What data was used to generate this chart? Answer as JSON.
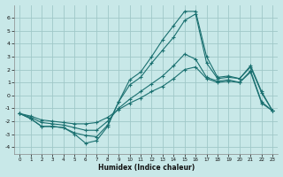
{
  "xlabel": "Humidex (Indice chaleur)",
  "bg_color": "#c8e8e8",
  "grid_color": "#a0c8c8",
  "line_color": "#1a7070",
  "xlim": [
    -0.5,
    23.5
  ],
  "ylim": [
    -4.5,
    7.0
  ],
  "yticks": [
    -4,
    -3,
    -2,
    -1,
    0,
    1,
    2,
    3,
    4,
    5,
    6
  ],
  "xticks": [
    0,
    1,
    2,
    3,
    4,
    5,
    6,
    7,
    8,
    9,
    10,
    11,
    12,
    13,
    14,
    15,
    16,
    17,
    18,
    19,
    20,
    21,
    22,
    23
  ],
  "line_peaked_x": [
    0,
    1,
    2,
    3,
    4,
    5,
    6,
    7,
    8,
    9,
    10,
    11,
    12,
    13,
    14,
    15,
    16,
    17,
    18,
    19,
    20,
    21,
    22,
    23
  ],
  "line_peaked_y": [
    -1.4,
    -1.8,
    -2.4,
    -2.4,
    -2.5,
    -3.0,
    -3.7,
    -3.5,
    -2.4,
    -0.5,
    1.2,
    1.8,
    3.0,
    4.3,
    5.4,
    6.5,
    6.5,
    3.0,
    1.4,
    1.5,
    1.3,
    2.3,
    0.3,
    -1.2
  ],
  "line2_x": [
    0,
    1,
    2,
    3,
    4,
    5,
    6,
    7,
    8,
    9,
    10,
    11,
    12,
    13,
    14,
    15,
    16,
    17,
    18,
    19,
    20,
    21,
    22,
    23
  ],
  "line2_y": [
    -1.4,
    -1.8,
    -2.4,
    -2.4,
    -2.5,
    -2.9,
    -3.1,
    -3.2,
    -2.3,
    -0.5,
    0.8,
    1.4,
    2.5,
    3.5,
    4.5,
    5.8,
    6.3,
    2.5,
    1.3,
    1.4,
    1.3,
    2.2,
    0.2,
    -1.2
  ],
  "line3_x": [
    0,
    1,
    2,
    3,
    4,
    5,
    6,
    7,
    8,
    9,
    10,
    11,
    12,
    13,
    14,
    15,
    16,
    17,
    18,
    19,
    20,
    21,
    22,
    23
  ],
  "line3_y": [
    -1.4,
    -1.7,
    -2.1,
    -2.2,
    -2.3,
    -2.5,
    -2.7,
    -2.7,
    -2.0,
    -1.0,
    -0.3,
    0.3,
    0.9,
    1.5,
    2.3,
    3.2,
    2.8,
    1.4,
    1.1,
    1.2,
    1.0,
    1.9,
    -0.5,
    -1.2
  ],
  "line4_x": [
    0,
    1,
    2,
    3,
    4,
    5,
    6,
    7,
    8,
    9,
    10,
    11,
    12,
    13,
    14,
    15,
    16,
    17,
    18,
    19,
    20,
    21,
    22,
    23
  ],
  "line4_y": [
    -1.4,
    -1.6,
    -1.9,
    -2.0,
    -2.1,
    -2.2,
    -2.2,
    -2.1,
    -1.7,
    -1.1,
    -0.6,
    -0.2,
    0.3,
    0.7,
    1.3,
    2.0,
    2.2,
    1.3,
    1.0,
    1.1,
    1.0,
    1.8,
    -0.6,
    -1.2
  ]
}
